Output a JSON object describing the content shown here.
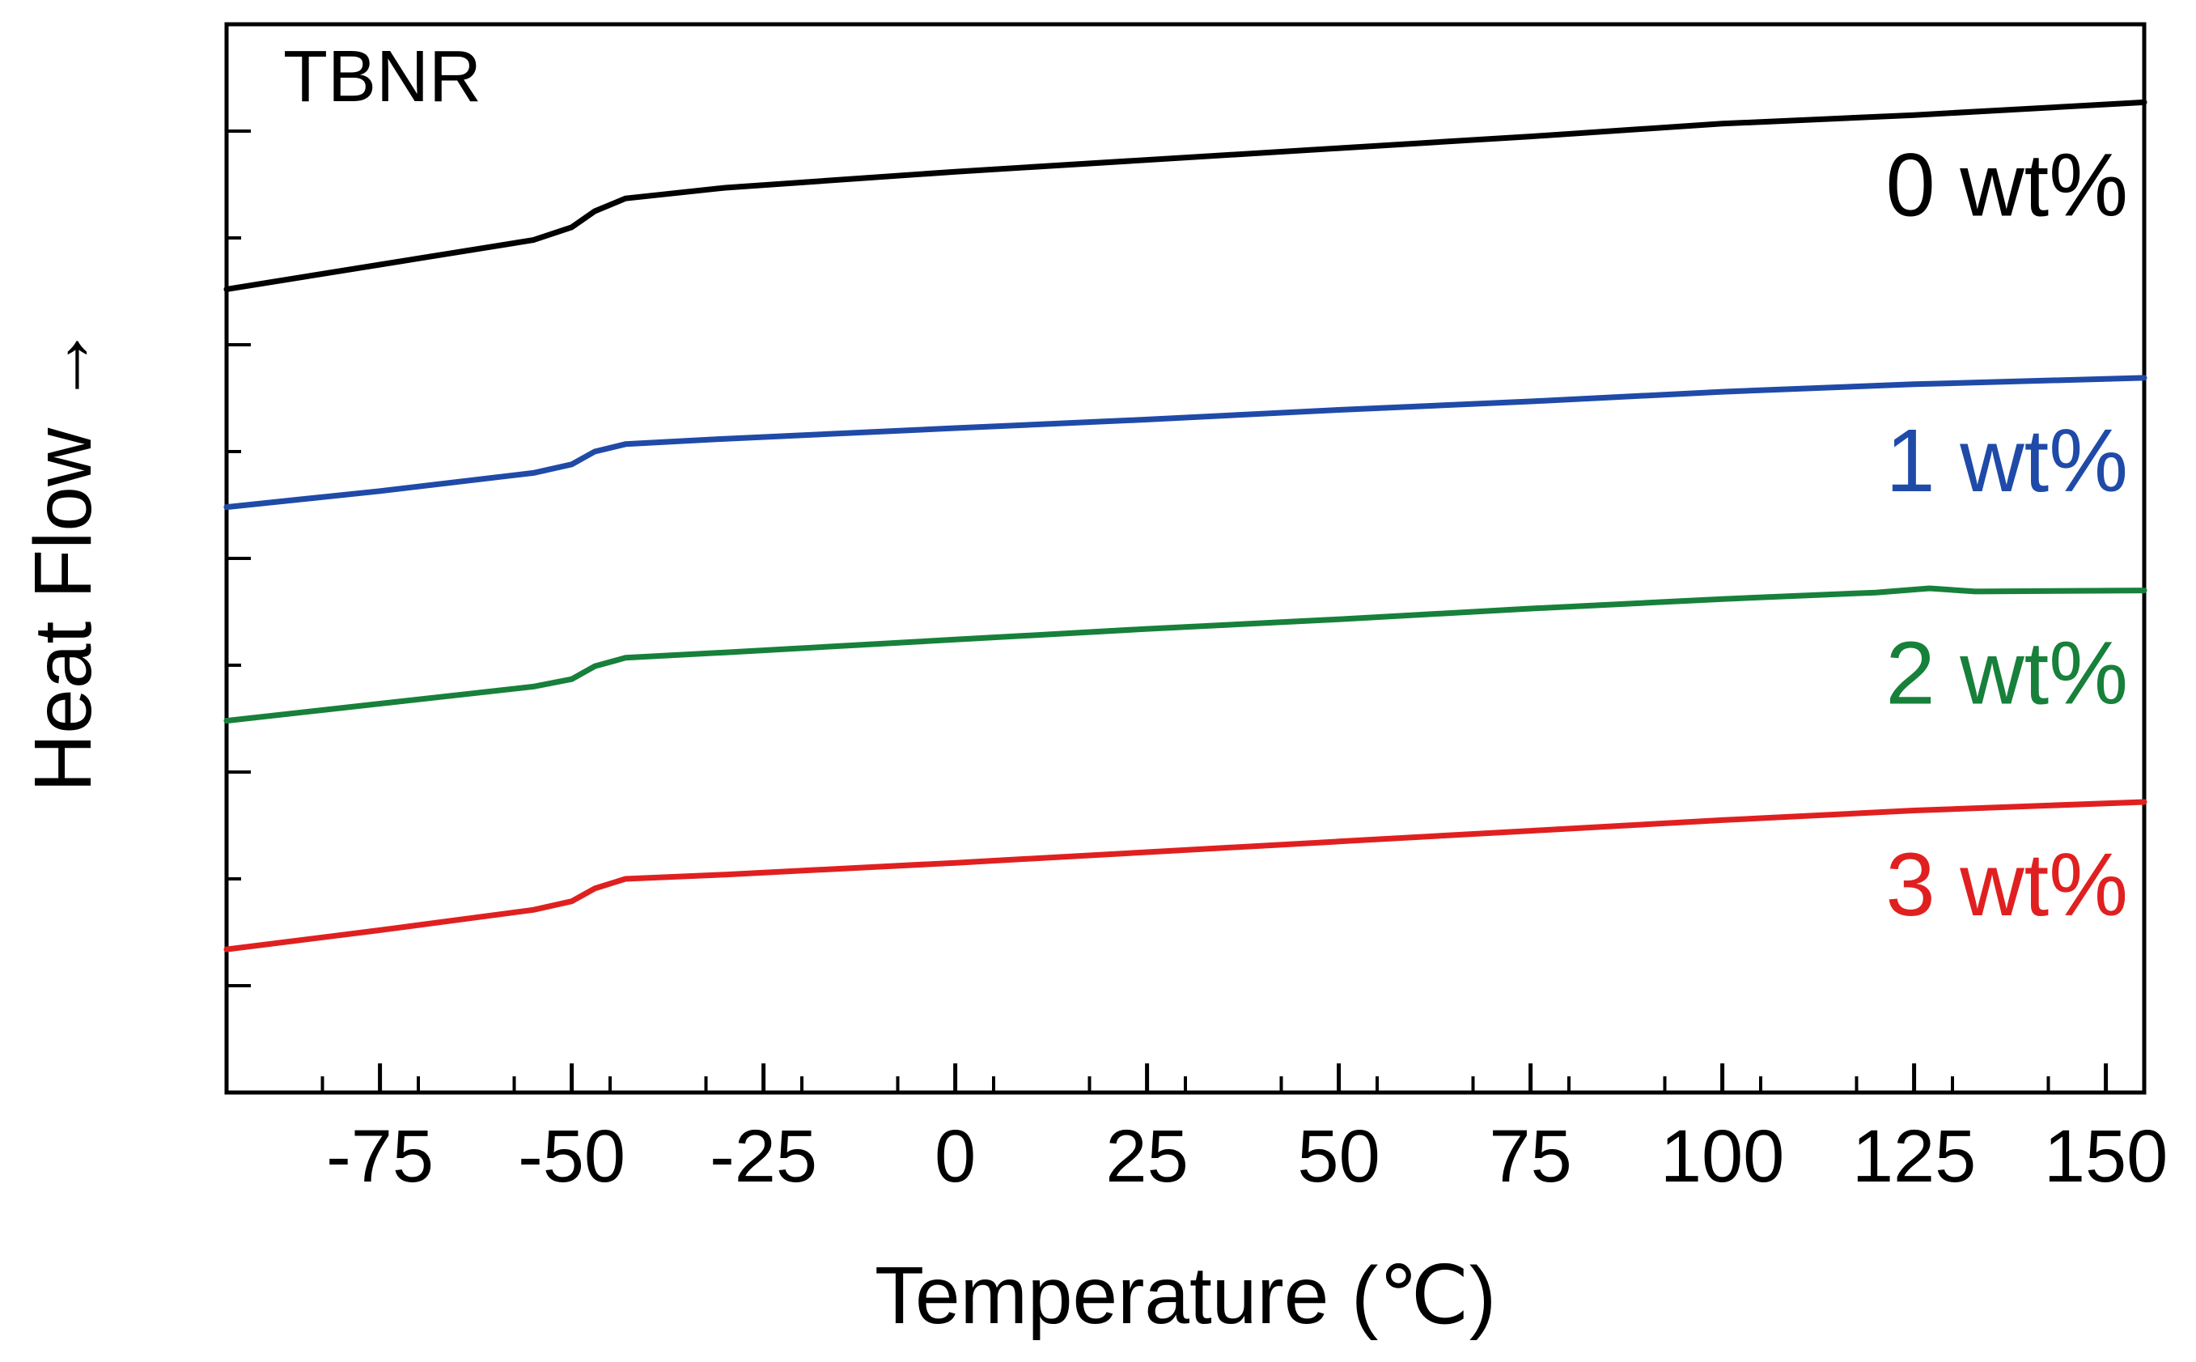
{
  "chart_data": {
    "type": "line",
    "title": "",
    "annotation": "TBNR",
    "xlabel": "Temperature (℃)",
    "ylabel": "Heat Flow →",
    "xlim": [
      -95,
      155
    ],
    "ylim": [
      0,
      10
    ],
    "x_ticks": [
      -75,
      -50,
      -25,
      0,
      25,
      50,
      75,
      100,
      125,
      150
    ],
    "x_tick_labels": [
      "-75",
      "-50",
      "-25",
      "0",
      "25",
      "50",
      "75",
      "100",
      "125",
      "150"
    ],
    "y_tick_labels_shown": false,
    "grid": false,
    "series": [
      {
        "name": "0 wt%",
        "color": "#000000",
        "points": [
          [
            -95,
            7.52
          ],
          [
            -75,
            7.75
          ],
          [
            -55,
            7.98
          ],
          [
            -50,
            8.1
          ],
          [
            -47,
            8.25
          ],
          [
            -43,
            8.37
          ],
          [
            -30,
            8.47
          ],
          [
            0,
            8.62
          ],
          [
            25,
            8.73
          ],
          [
            50,
            8.84
          ],
          [
            75,
            8.95
          ],
          [
            100,
            9.07
          ],
          [
            125,
            9.15
          ],
          [
            155,
            9.27
          ]
        ]
      },
      {
        "name": "1 wt%",
        "color": "#1f4aa8",
        "points": [
          [
            -95,
            5.48
          ],
          [
            -75,
            5.63
          ],
          [
            -55,
            5.8
          ],
          [
            -50,
            5.88
          ],
          [
            -47,
            6.0
          ],
          [
            -43,
            6.07
          ],
          [
            -30,
            6.12
          ],
          [
            0,
            6.22
          ],
          [
            25,
            6.3
          ],
          [
            50,
            6.39
          ],
          [
            75,
            6.47
          ],
          [
            100,
            6.56
          ],
          [
            125,
            6.63
          ],
          [
            155,
            6.69
          ]
        ]
      },
      {
        "name": "2 wt%",
        "color": "#17803a",
        "points": [
          [
            -95,
            3.48
          ],
          [
            -75,
            3.64
          ],
          [
            -55,
            3.8
          ],
          [
            -50,
            3.87
          ],
          [
            -47,
            3.99
          ],
          [
            -43,
            4.07
          ],
          [
            -30,
            4.12
          ],
          [
            0,
            4.24
          ],
          [
            25,
            4.34
          ],
          [
            50,
            4.43
          ],
          [
            75,
            4.53
          ],
          [
            100,
            4.62
          ],
          [
            120,
            4.68
          ],
          [
            127,
            4.72
          ],
          [
            133,
            4.69
          ],
          [
            155,
            4.7
          ]
        ]
      },
      {
        "name": "3 wt%",
        "color": "#e02020",
        "points": [
          [
            -95,
            1.34
          ],
          [
            -75,
            1.52
          ],
          [
            -55,
            1.71
          ],
          [
            -50,
            1.79
          ],
          [
            -47,
            1.91
          ],
          [
            -43,
            2.0
          ],
          [
            -30,
            2.04
          ],
          [
            0,
            2.15
          ],
          [
            25,
            2.25
          ],
          [
            50,
            2.35
          ],
          [
            75,
            2.45
          ],
          [
            100,
            2.55
          ],
          [
            125,
            2.64
          ],
          [
            155,
            2.72
          ]
        ]
      }
    ],
    "legend_style": "inline labels at right end of each curve"
  }
}
